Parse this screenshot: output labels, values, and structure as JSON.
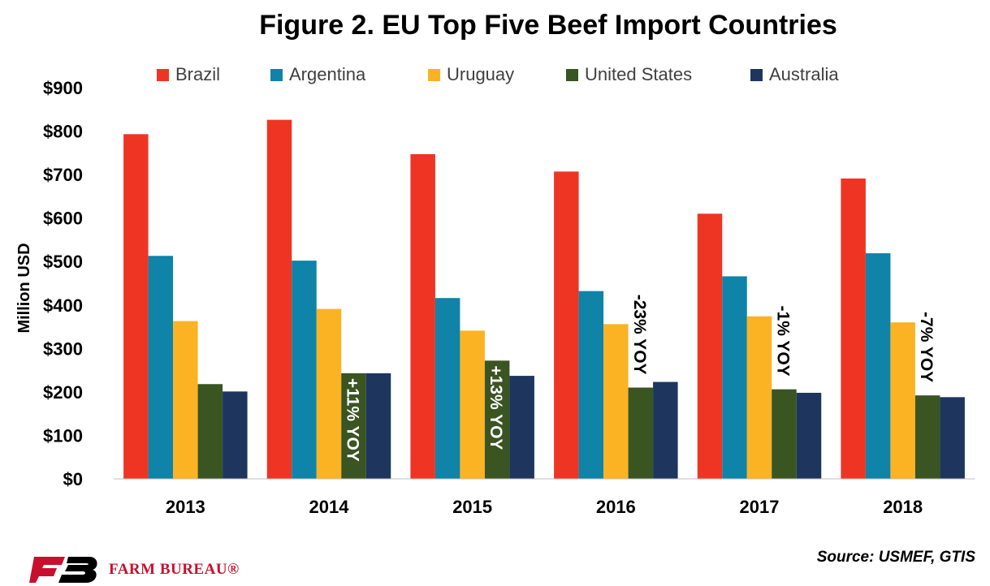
{
  "chart_data": {
    "type": "bar",
    "title": "Figure 2. EU Top Five Beef Import Countries",
    "ylabel": "Million USD",
    "xlabel": "",
    "ylim": [
      0,
      900
    ],
    "yticks": [
      0,
      100,
      200,
      300,
      400,
      500,
      600,
      700,
      800,
      900
    ],
    "ytick_labels": [
      "$0",
      "$100",
      "$200",
      "$300",
      "$400",
      "$500",
      "$600",
      "$700",
      "$800",
      "$900"
    ],
    "categories": [
      "2013",
      "2014",
      "2015",
      "2016",
      "2017",
      "2018"
    ],
    "legend_position": "top",
    "grid": false,
    "series": [
      {
        "name": "Brazil",
        "color": "#ee3524",
        "values": [
          793,
          826,
          747,
          707,
          610,
          691
        ]
      },
      {
        "name": "Argentina",
        "color": "#0f83a8",
        "values": [
          513,
          502,
          416,
          432,
          466,
          519
        ]
      },
      {
        "name": "Uruguay",
        "color": "#fbb324",
        "values": [
          363,
          391,
          341,
          356,
          374,
          360
        ]
      },
      {
        "name": "United States",
        "color": "#3a5422",
        "values": [
          218,
          243,
          272,
          210,
          206,
          192
        ]
      },
      {
        "name": "Australia",
        "color": "#1e355e",
        "values": [
          201,
          243,
          237,
          223,
          198,
          188
        ]
      }
    ],
    "annotations": [
      {
        "category": "2014",
        "text": "+11% YOY",
        "inside_bar": true
      },
      {
        "category": "2015",
        "text": "+13% YOY",
        "inside_bar": true
      },
      {
        "category": "2016",
        "text": "-23% YOY",
        "inside_bar": false
      },
      {
        "category": "2017",
        "text": "-1% YOY",
        "inside_bar": false
      },
      {
        "category": "2018",
        "text": "-7% YOY",
        "inside_bar": false
      }
    ]
  },
  "source": "Source: USMEF, GTIS",
  "logo": {
    "text": "FARM BUREAU®",
    "color": "#c8102e"
  }
}
